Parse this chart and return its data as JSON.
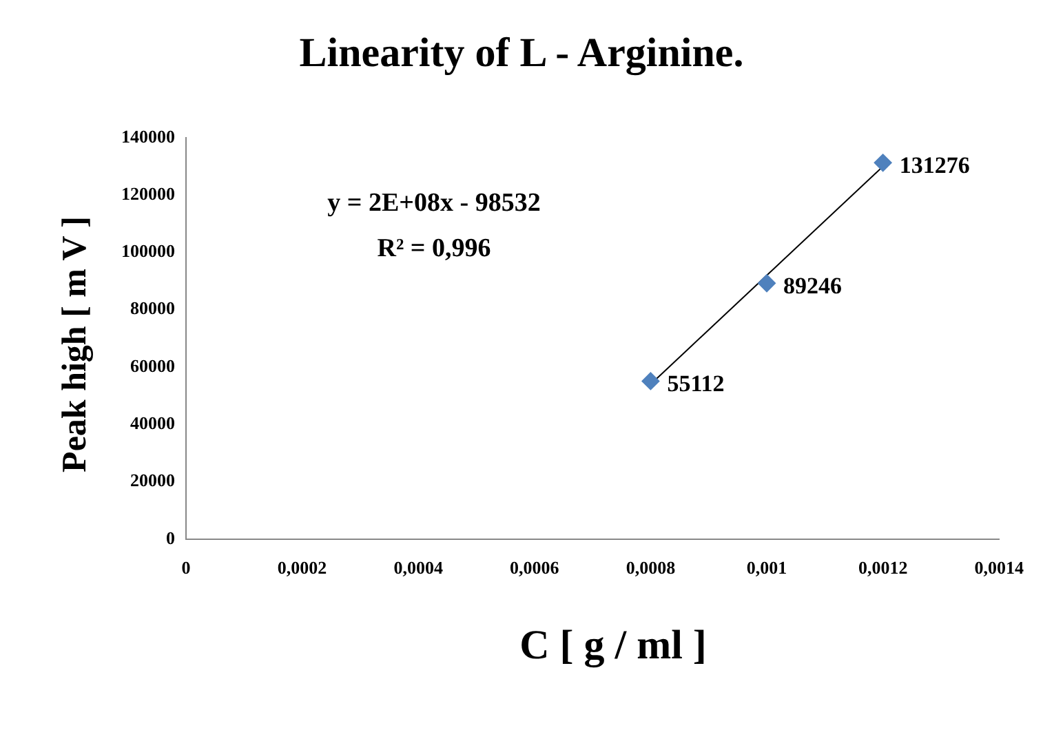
{
  "chart_data": {
    "type": "scatter",
    "title": "Linearity of L - Arginine.",
    "xlabel": "C  [ g / ml ]",
    "ylabel": "Peak  high [ m V ]",
    "annotations": [
      "y = 2E+08x - 98532",
      "R² = 0,996"
    ],
    "series": [
      {
        "color": "#4f81bd",
        "marker": "diamond",
        "x": [
          0.0008,
          0.001,
          0.0012
        ],
        "values": [
          55112,
          89246,
          131276
        ],
        "value_labels": [
          "55112",
          "89246",
          "131276"
        ]
      },
      {
        "type": "line",
        "color": "#000000",
        "marker": "none",
        "x": [
          0.0008,
          0.0012
        ],
        "values": [
          54000,
          130000
        ]
      }
    ],
    "grid": false,
    "xlim": [
      0,
      0.0014
    ],
    "xticks": [
      0,
      {
        "value": 0.0002,
        "label": "0,0002"
      },
      {
        "value": 0.0004,
        "label": "0,0004"
      },
      {
        "value": 0.0006,
        "label": "0,0006"
      },
      {
        "value": 0.0008,
        "label": "0,0008"
      },
      {
        "value": 0.001,
        "label": "0,001"
      },
      {
        "value": 0.0012,
        "label": "0,0012"
      },
      {
        "value": 0.0014,
        "label": "0,0014"
      }
    ],
    "ylim": [
      0,
      140000
    ],
    "yticks": [
      0,
      20000,
      40000,
      60000,
      80000,
      100000,
      120000,
      140000
    ]
  }
}
